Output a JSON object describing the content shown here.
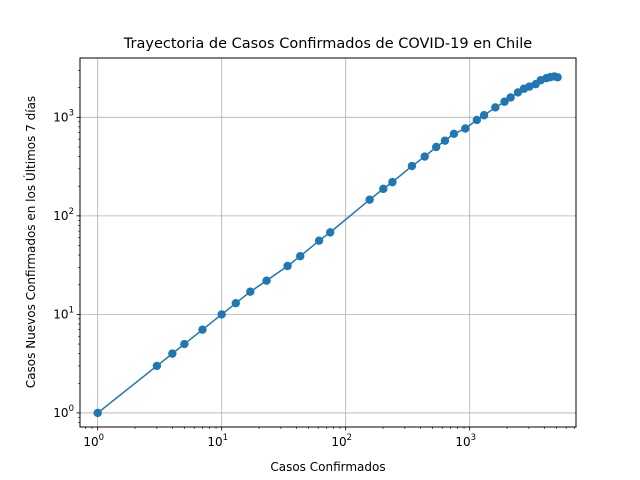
{
  "chart_data": {
    "type": "line",
    "title": "Trayectoria de Casos Confirmados de COVID-19 en Chile",
    "xlabel": "Casos Confirmados",
    "ylabel": "Casos Nuevos Confirmados en los Últimos 7 días",
    "x_scale": "log",
    "y_scale": "log",
    "xlim": [
      0.72,
      7200
    ],
    "ylim": [
      0.72,
      4000
    ],
    "grid": true,
    "x_ticks": [
      {
        "value": 1,
        "base": "10",
        "exp": "0"
      },
      {
        "value": 10,
        "base": "10",
        "exp": "1"
      },
      {
        "value": 100,
        "base": "10",
        "exp": "2"
      },
      {
        "value": 1000,
        "base": "10",
        "exp": "3"
      }
    ],
    "y_ticks": [
      {
        "value": 1,
        "base": "10",
        "exp": "0"
      },
      {
        "value": 10,
        "base": "10",
        "exp": "1"
      },
      {
        "value": 100,
        "base": "10",
        "exp": "2"
      },
      {
        "value": 1000,
        "base": "10",
        "exp": "3"
      }
    ],
    "series": [
      {
        "color": "#1f77b4",
        "points": [
          [
            1,
            1
          ],
          [
            3,
            3
          ],
          [
            4,
            4
          ],
          [
            5,
            5
          ],
          [
            7,
            7
          ],
          [
            10,
            10
          ],
          [
            13,
            13
          ],
          [
            17,
            17
          ],
          [
            23,
            22
          ],
          [
            34,
            31
          ],
          [
            43,
            39
          ],
          [
            61,
            56
          ],
          [
            75,
            68
          ],
          [
            156,
            146
          ],
          [
            201,
            188
          ],
          [
            238,
            220
          ],
          [
            342,
            320
          ],
          [
            434,
            400
          ],
          [
            537,
            500
          ],
          [
            632,
            580
          ],
          [
            746,
            680
          ],
          [
            922,
            770
          ],
          [
            1142,
            940
          ],
          [
            1306,
            1050
          ],
          [
            1610,
            1260
          ],
          [
            1909,
            1440
          ],
          [
            2139,
            1590
          ],
          [
            2449,
            1790
          ],
          [
            2738,
            1950
          ],
          [
            3031,
            2050
          ],
          [
            3404,
            2170
          ],
          [
            3737,
            2380
          ],
          [
            4161,
            2500
          ],
          [
            4471,
            2560
          ],
          [
            4815,
            2600
          ],
          [
            5116,
            2550
          ]
        ]
      }
    ]
  }
}
